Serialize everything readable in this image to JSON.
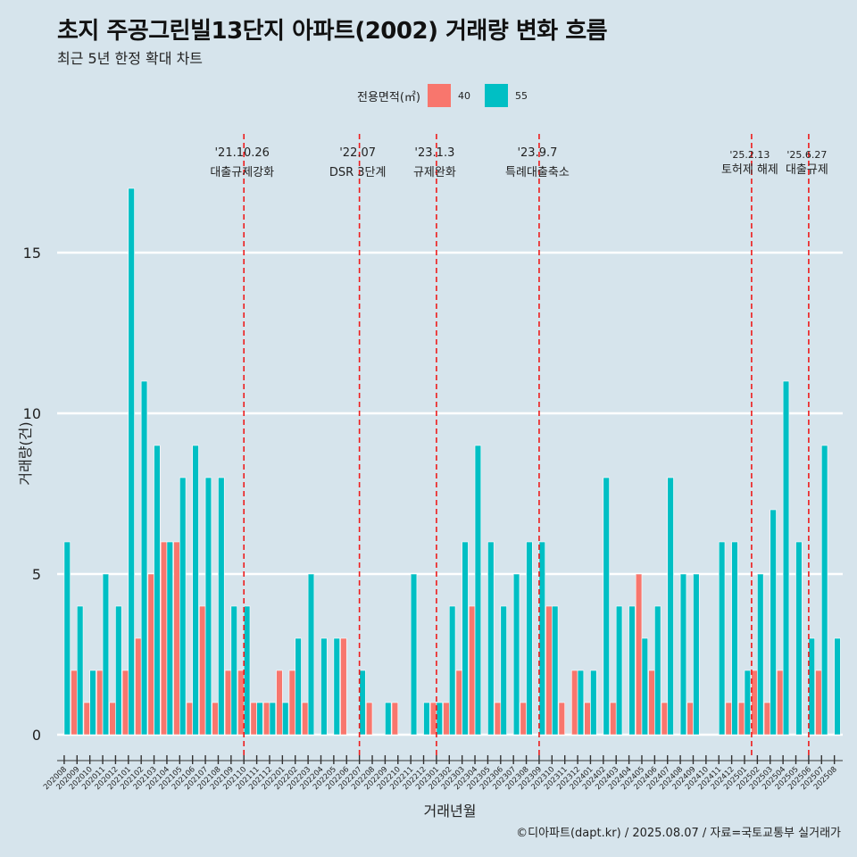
{
  "title": "초지 주공그린빌13단지 아파트(2002) 거래량 변화 흐름",
  "subtitle": "최근 5년 한정 확대 차트",
  "credit": "©디아파트(dapt.kr) / 2025.08.07 / 자료=국토교통부 실거래가",
  "legend": {
    "title": "전용면적(㎡)",
    "items": [
      {
        "label": "40",
        "color": "#f8766d"
      },
      {
        "label": "55",
        "color": "#00bfc4"
      }
    ]
  },
  "chart_data": {
    "type": "bar",
    "xlabel": "거래년월",
    "ylabel": "거래량(건)",
    "ylim": [
      0,
      18
    ],
    "yticks": [
      0,
      5,
      10,
      15
    ],
    "categories": [
      "202008",
      "202009",
      "202010",
      "202011",
      "202012",
      "202101",
      "202102",
      "202103",
      "202104",
      "202105",
      "202106",
      "202107",
      "202108",
      "202109",
      "202110",
      "202111",
      "202112",
      "202201",
      "202202",
      "202203",
      "202204",
      "202205",
      "202206",
      "202207",
      "202208",
      "202209",
      "202210",
      "202211",
      "202212",
      "202301",
      "202302",
      "202303",
      "202304",
      "202305",
      "202306",
      "202307",
      "202308",
      "202309",
      "202310",
      "202311",
      "202312",
      "202401",
      "202402",
      "202403",
      "202404",
      "202405",
      "202406",
      "202407",
      "202408",
      "202409",
      "202410",
      "202411",
      "202412",
      "202501",
      "202502",
      "202503",
      "202504",
      "202505",
      "202506",
      "202507",
      "202508"
    ],
    "series": [
      {
        "name": "40",
        "color": "#f8766d",
        "values": [
          0,
          2,
          1,
          2,
          1,
          2,
          3,
          5,
          6,
          6,
          1,
          4,
          1,
          2,
          2,
          1,
          1,
          2,
          2,
          1,
          0,
          0,
          3,
          0,
          1,
          0,
          1,
          0,
          0,
          1,
          1,
          2,
          4,
          0,
          1,
          0,
          1,
          0,
          4,
          1,
          2,
          1,
          0,
          1,
          0,
          5,
          2,
          1,
          0,
          1,
          0,
          0,
          1,
          1,
          2,
          1,
          2,
          0,
          0,
          2,
          0
        ]
      },
      {
        "name": "55",
        "color": "#00bfc4",
        "values": [
          6,
          4,
          2,
          5,
          4,
          17,
          11,
          9,
          6,
          8,
          9,
          8,
          8,
          4,
          4,
          1,
          1,
          1,
          3,
          5,
          3,
          3,
          0,
          2,
          0,
          1,
          0,
          5,
          1,
          1,
          4,
          6,
          9,
          6,
          4,
          5,
          6,
          6,
          4,
          0,
          2,
          2,
          8,
          4,
          4,
          3,
          4,
          8,
          5,
          5,
          0,
          6,
          6,
          2,
          5,
          7,
          11,
          6,
          3,
          9,
          3
        ]
      }
    ],
    "annotations": [
      {
        "x": "202110",
        "date": "'21.10.26",
        "label": "대출규제강화",
        "level": "high"
      },
      {
        "x": "202207",
        "date": "'22.07",
        "label": "DSR 3단계",
        "level": "high"
      },
      {
        "x": "202301",
        "date": "'23.1.3",
        "label": "규제완화",
        "level": "high"
      },
      {
        "x": "202309",
        "date": "'23.9.7",
        "label": "특례대출축소",
        "level": "high"
      },
      {
        "x": "202502",
        "date": "'25.2.13",
        "label": "토허제 해제",
        "level": "low"
      },
      {
        "x": "202506",
        "date": "'25.6.27",
        "label": "대출규제",
        "level": "low"
      }
    ],
    "grid": true,
    "legend_position": "top"
  }
}
